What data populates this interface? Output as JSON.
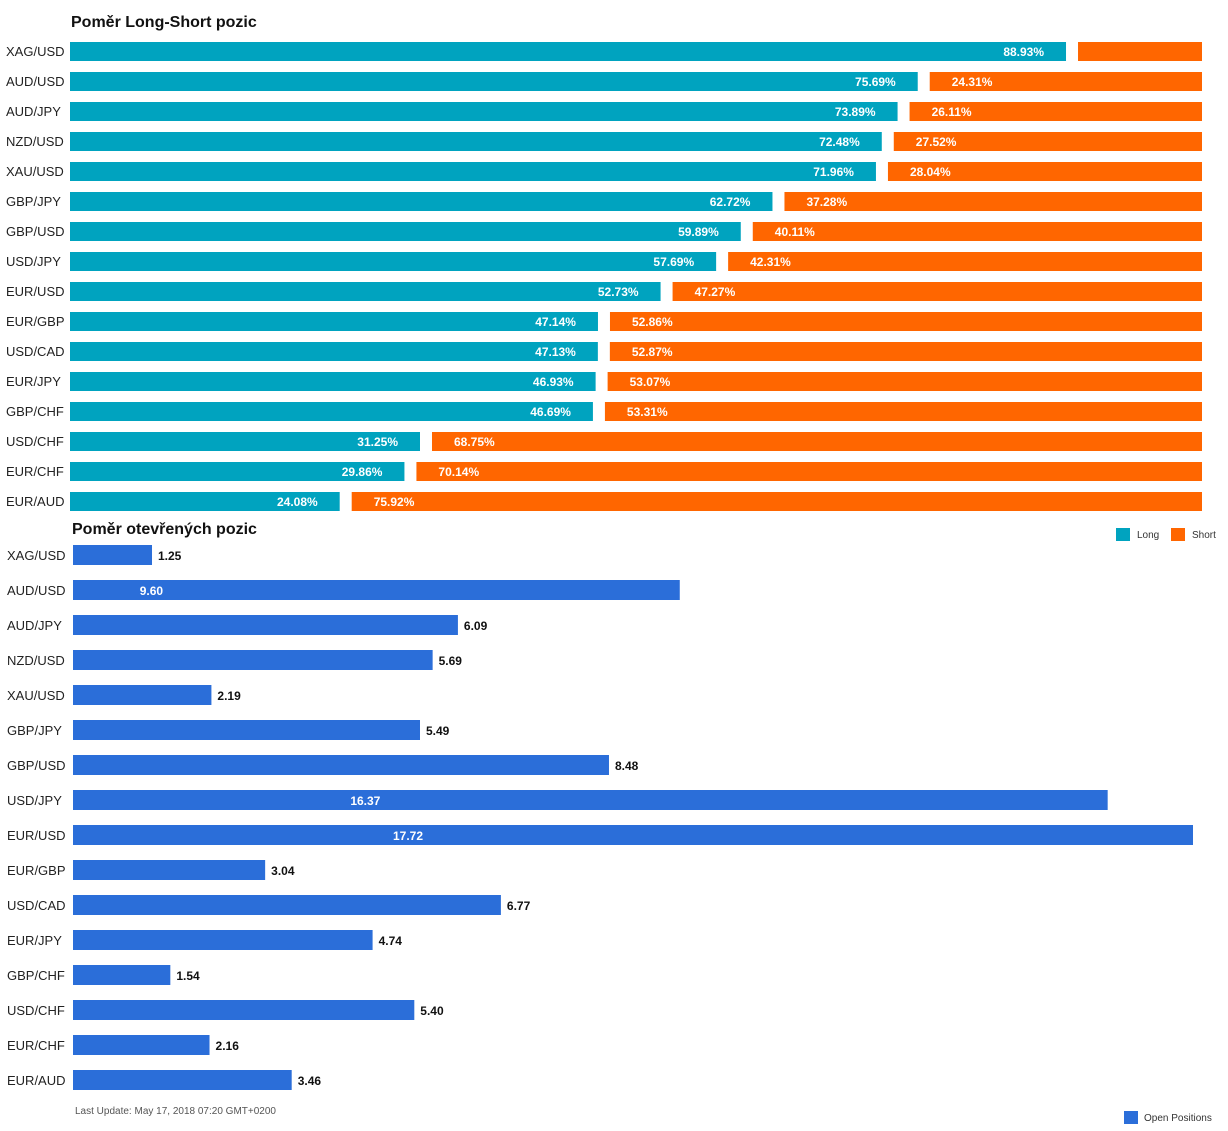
{
  "chart_data": [
    {
      "type": "bar",
      "orientation": "horizontal",
      "stacked": "percent",
      "title": "Poměr Long-Short pozic",
      "categories": [
        "XAG/USD",
        "AUD/USD",
        "AUD/JPY",
        "NZD/USD",
        "XAU/USD",
        "GBP/JPY",
        "GBP/USD",
        "USD/JPY",
        "EUR/USD",
        "EUR/GBP",
        "USD/CAD",
        "EUR/JPY",
        "GBP/CHF",
        "USD/CHF",
        "EUR/CHF",
        "EUR/AUD"
      ],
      "series": [
        {
          "name": "Long",
          "color": "#00a3bf",
          "values": [
            88.93,
            75.69,
            73.89,
            72.48,
            71.96,
            62.72,
            59.89,
            57.69,
            52.73,
            47.14,
            47.13,
            46.93,
            46.69,
            31.25,
            29.86,
            24.08
          ],
          "labels": [
            "88.93%",
            "75.69%",
            "73.89%",
            "72.48%",
            "71.96%",
            "62.72%",
            "59.89%",
            "57.69%",
            "52.73%",
            "47.14%",
            "47.13%",
            "46.93%",
            "46.69%",
            "31.25%",
            "29.86%",
            "24.08%"
          ]
        },
        {
          "name": "Short",
          "color": "#ff6600",
          "values": [
            11.07,
            24.31,
            26.11,
            27.52,
            28.04,
            37.28,
            40.11,
            42.31,
            47.27,
            52.86,
            52.87,
            53.07,
            53.31,
            68.75,
            70.14,
            75.92
          ],
          "labels": [
            "",
            "24.31%",
            "26.11%",
            "27.52%",
            "28.04%",
            "37.28%",
            "40.11%",
            "42.31%",
            "47.27%",
            "52.86%",
            "52.87%",
            "53.07%",
            "53.31%",
            "68.75%",
            "70.14%",
            "75.92%"
          ]
        }
      ],
      "legend": "top-right",
      "grid": false
    },
    {
      "type": "bar",
      "orientation": "horizontal",
      "title": "Poměr otevřených pozic",
      "categories": [
        "XAG/USD",
        "AUD/USD",
        "AUD/JPY",
        "NZD/USD",
        "XAU/USD",
        "GBP/JPY",
        "GBP/USD",
        "USD/JPY",
        "EUR/USD",
        "EUR/GBP",
        "USD/CAD",
        "EUR/JPY",
        "GBP/CHF",
        "USD/CHF",
        "EUR/CHF",
        "EUR/AUD"
      ],
      "series": [
        {
          "name": "Open Positions",
          "color": "#2b6ed9",
          "values": [
            1.25,
            9.6,
            6.09,
            5.69,
            2.19,
            5.49,
            8.48,
            16.37,
            17.72,
            3.04,
            6.77,
            4.74,
            1.54,
            5.4,
            2.16,
            3.46
          ],
          "labels": [
            "1.25",
            "9.60",
            "6.09",
            "5.69",
            "2.19",
            "5.49",
            "8.48",
            "16.37",
            "17.72",
            "3.04",
            "6.77",
            "4.74",
            "1.54",
            "5.40",
            "2.16",
            "3.46"
          ]
        }
      ],
      "legend": "bottom-right",
      "grid": false,
      "xlim": [
        0,
        17.72
      ]
    }
  ],
  "footer": {
    "last_update": "Last Update: May 17, 2018 07:20 GMT+0200"
  }
}
